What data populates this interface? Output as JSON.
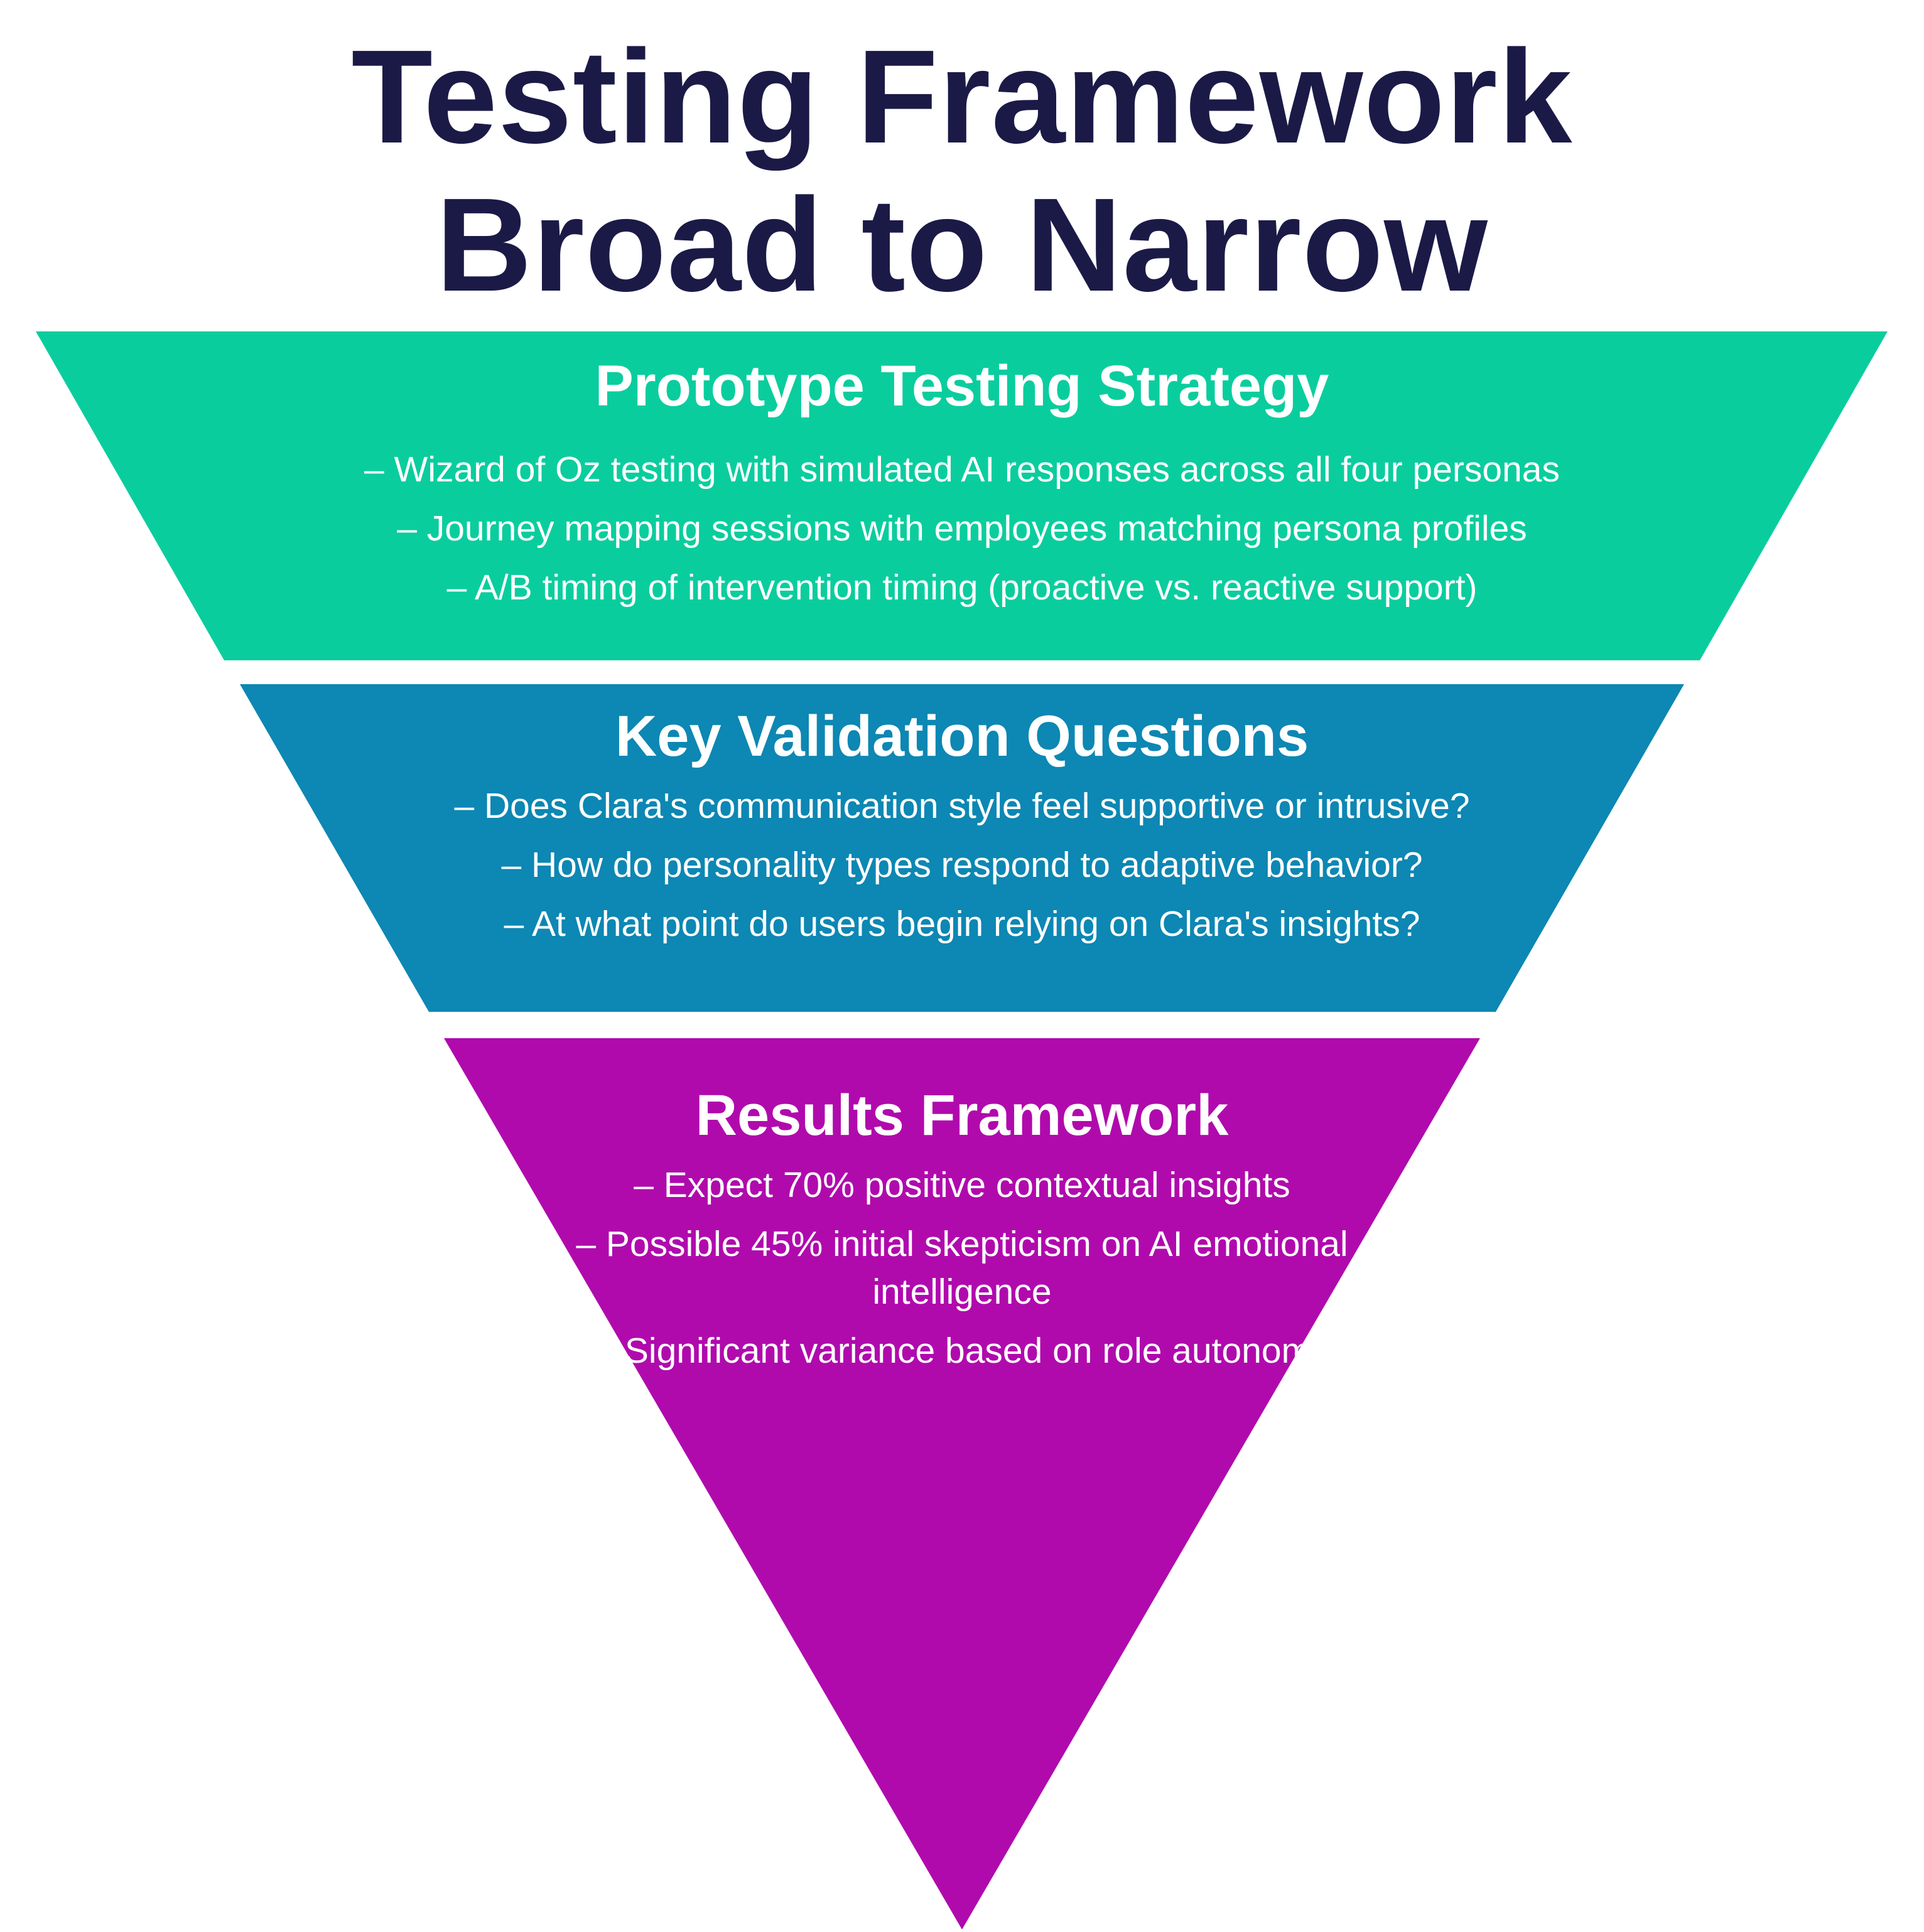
{
  "title": {
    "line1": "Testing Framework",
    "line2": "Broad to Narrow"
  },
  "colors": {
    "title": "#1b1a47",
    "tier1": "#0acd9e",
    "tier2": "#0d87b3",
    "tier3": "#b00aad",
    "text": "#ffffff"
  },
  "tiers": [
    {
      "heading": "Prototype Testing Strategy",
      "items": [
        "– Wizard of Oz testing with simulated AI responses across all four personas",
        "– Journey mapping sessions with employees matching persona profiles",
        "– A/B timing of intervention timing (proactive vs. reactive support)"
      ]
    },
    {
      "heading": "Key Validation Questions",
      "items": [
        "– Does Clara's communication style feel supportive or intrusive?",
        "– How do personality types respond to adaptive behavior?",
        "– At what point do users begin relying on Clara's insights?"
      ]
    },
    {
      "heading": "Results Framework",
      "items": [
        "– Expect 70% positive contextual insights",
        "– Possible 45% initial skepticism on AI emotional intelligence",
        "– Significant variance based on role autonomy"
      ]
    }
  ]
}
